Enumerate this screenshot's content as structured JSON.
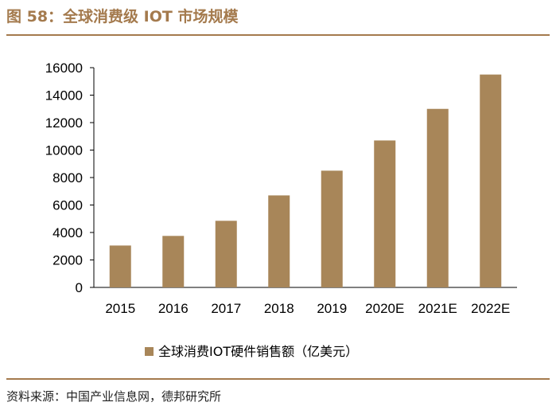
{
  "figure_title": "图 58：全球消费级 IOT 市场规模",
  "source_note": "资料来源：中国产业信息网，德邦研究所",
  "colors": {
    "bar": "#a88659",
    "title": "#a47a4d",
    "axis": "#000000"
  },
  "chart_data": {
    "type": "bar",
    "title": "",
    "xlabel": "",
    "ylabel": "",
    "categories": [
      "2015",
      "2016",
      "2017",
      "2018",
      "2019",
      "2020E",
      "2021E",
      "2022E"
    ],
    "series": [
      {
        "name": "全球消费IOT硬件销售额（亿美元）",
        "values": [
          3050,
          3750,
          4850,
          6700,
          8500,
          10700,
          13000,
          15500
        ]
      }
    ],
    "ylim": [
      0,
      16000
    ],
    "yticks": [
      0,
      2000,
      4000,
      6000,
      8000,
      10000,
      12000,
      14000,
      16000
    ],
    "legend": "bottom-center",
    "grid": false
  }
}
